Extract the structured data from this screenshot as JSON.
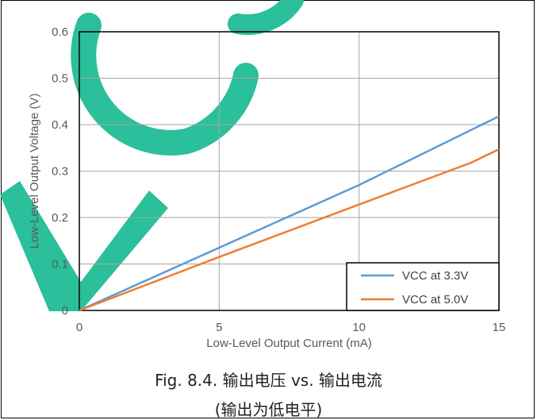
{
  "chart_data": {
    "type": "line",
    "xlabel": "Low-Level Output Current (mA)",
    "ylabel": "Low-Level Output Voltage (V)",
    "xlim": [
      0,
      15
    ],
    "ylim": [
      0,
      0.6
    ],
    "x_ticks": [
      "0",
      "5",
      "10",
      "15"
    ],
    "y_ticks": [
      "0",
      "0.1",
      "0.2",
      "0.3",
      "0.4",
      "0.5",
      "0.6"
    ],
    "grid": true,
    "legend_position": "bottom-right",
    "series": [
      {
        "name": "VCC at 3.3V",
        "color": "#5b9bd5",
        "x": [
          0,
          5,
          10,
          15
        ],
        "y": [
          0,
          0.135,
          0.27,
          0.418
        ]
      },
      {
        "name": "VCC at 5.0V",
        "color": "#ed7d31",
        "x": [
          0,
          5,
          10,
          14,
          15
        ],
        "y": [
          0,
          0.115,
          0.228,
          0.318,
          0.347
        ]
      }
    ]
  },
  "caption": {
    "line1": "Fig. 8.4. 输出电压 vs. 输出电流",
    "line2": "(输出为低电平)"
  },
  "watermark": {
    "color": "#2bbf9b"
  }
}
